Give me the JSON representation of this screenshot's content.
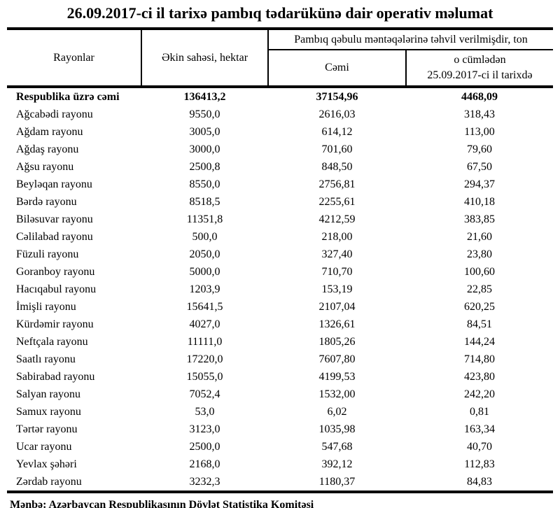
{
  "page": {
    "title": "26.09.2017-ci il tarixə pambıq tədarükünə dair operativ məlumat",
    "footer": "Mənbə: Azərbaycan Respublikasının Dövlət Statistika Komitəsi"
  },
  "table": {
    "headers": {
      "region": "Rayonlar",
      "area": "Əkin sahəsi, hektar",
      "delivered_group": "Pambıq qəbulu məntəqələrinə təhvil verilmişdir, ton",
      "total": "Cəmi",
      "including_line1": "o cümlədən",
      "including_line2": "25.09.2017-ci il tarixdə"
    },
    "total_row": {
      "name": "Respublika üzrə cəmi",
      "area": "136413,2",
      "total": "37154,96",
      "including": "4468,09"
    },
    "rows": [
      {
        "name": "Ağcabədi rayonu",
        "area": "9550,0",
        "total": "2616,03",
        "including": "318,43"
      },
      {
        "name": "Ağdam rayonu",
        "area": "3005,0",
        "total": "614,12",
        "including": "113,00"
      },
      {
        "name": "Ağdaş rayonu",
        "area": "3000,0",
        "total": "701,60",
        "including": "79,60"
      },
      {
        "name": "Ağsu rayonu",
        "area": "2500,8",
        "total": "848,50",
        "including": "67,50"
      },
      {
        "name": "Beyləqan rayonu",
        "area": "8550,0",
        "total": "2756,81",
        "including": "294,37"
      },
      {
        "name": "Bərdə rayonu",
        "area": "8518,5",
        "total": "2255,61",
        "including": "410,18"
      },
      {
        "name": "Biləsuvar rayonu",
        "area": "11351,8",
        "total": "4212,59",
        "including": "383,85"
      },
      {
        "name": "Cəlilabad rayonu",
        "area": "500,0",
        "total": "218,00",
        "including": "21,60"
      },
      {
        "name": "Füzuli rayonu",
        "area": "2050,0",
        "total": "327,40",
        "including": "23,80"
      },
      {
        "name": "Goranboy rayonu",
        "area": "5000,0",
        "total": "710,70",
        "including": "100,60"
      },
      {
        "name": "Hacıqabul rayonu",
        "area": "1203,9",
        "total": "153,19",
        "including": "22,85"
      },
      {
        "name": "İmişli rayonu",
        "area": "15641,5",
        "total": "2107,04",
        "including": "620,25"
      },
      {
        "name": "Kürdəmir rayonu",
        "area": "4027,0",
        "total": "1326,61",
        "including": "84,51"
      },
      {
        "name": "Neftçala rayonu",
        "area": "11111,0",
        "total": "1805,26",
        "including": "144,24"
      },
      {
        "name": "Saatlı rayonu",
        "area": "17220,0",
        "total": "7607,80",
        "including": "714,80"
      },
      {
        "name": "Sabirabad rayonu",
        "area": "15055,0",
        "total": "4199,53",
        "including": "423,80"
      },
      {
        "name": "Salyan rayonu",
        "area": "7052,4",
        "total": "1532,00",
        "including": "242,20"
      },
      {
        "name": "Samux rayonu",
        "area": "53,0",
        "total": "6,02",
        "including": "0,81"
      },
      {
        "name": "Tərtər rayonu",
        "area": "3123,0",
        "total": "1035,98",
        "including": "163,34"
      },
      {
        "name": "Ucar rayonu",
        "area": "2500,0",
        "total": "547,68",
        "including": "40,70"
      },
      {
        "name": "Yevlax şəhəri",
        "area": "2168,0",
        "total": "392,12",
        "including": "112,83"
      },
      {
        "name": "Zərdab rayonu",
        "area": "3232,3",
        "total": "1180,37",
        "including": "84,83"
      }
    ]
  }
}
